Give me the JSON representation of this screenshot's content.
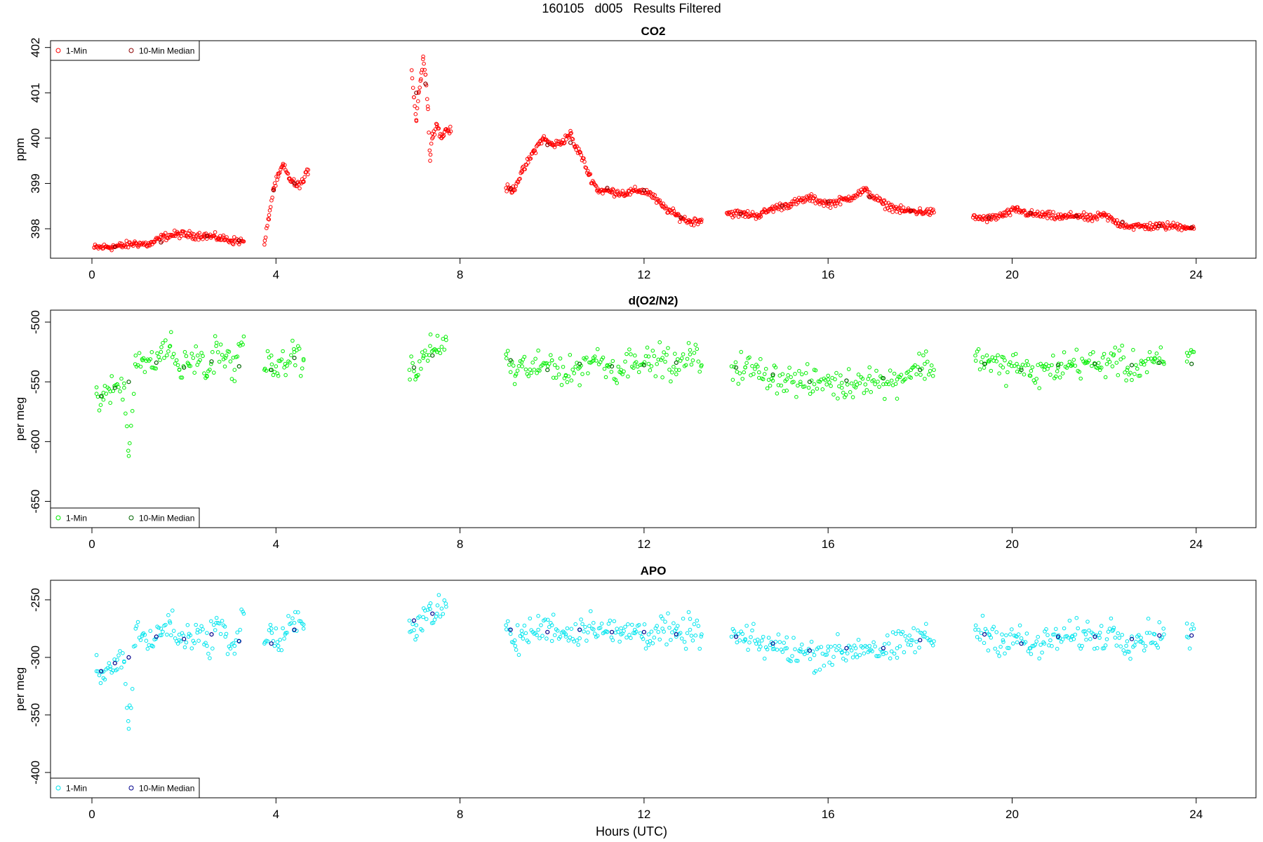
{
  "page_title": "160105   d005   Results Filtered",
  "x_axis_label": "Hours (UTC)",
  "chart_data": [
    {
      "type": "scatter",
      "title": "CO2",
      "ylabel": "ppm",
      "xlabel": "Hours (UTC)",
      "xlim": [
        -0.9,
        25.3
      ],
      "ylim": [
        397.35,
        402.15
      ],
      "xticks": [
        0,
        4,
        8,
        12,
        16,
        20,
        24
      ],
      "yticks": [
        398,
        399,
        400,
        401,
        402
      ],
      "ytick_labels": [
        "398",
        "399",
        "400",
        "401",
        "402"
      ],
      "legend": {
        "position": "top-left",
        "entries": [
          "1-Min",
          "10-Min Median"
        ]
      },
      "colors": {
        "one_min": "#ff0000",
        "median": "#8b0000"
      },
      "series": [
        {
          "name": "1-Min",
          "x": [
            0.05,
            0.35,
            0.65,
            0.95,
            1.25,
            1.55,
            1.85,
            2.15,
            2.45,
            2.75,
            3.05,
            3.3,
            3.75,
            3.85,
            3.95,
            4.05,
            4.15,
            4.3,
            4.45,
            4.6,
            4.7,
            6.95,
            7.0,
            7.05,
            7.1,
            7.15,
            7.2,
            7.25,
            7.3,
            7.35,
            7.4,
            7.5,
            7.6,
            7.7,
            7.8,
            9.0,
            9.15,
            9.35,
            9.6,
            9.8,
            10.0,
            10.2,
            10.4,
            10.5,
            10.6,
            10.8,
            11.0,
            11.3,
            11.6,
            11.9,
            12.1,
            12.4,
            12.7,
            13.0,
            13.25,
            13.8,
            14.2,
            14.5,
            14.8,
            15.2,
            15.6,
            16.0,
            16.4,
            16.8,
            17.2,
            17.6,
            18.0,
            18.3,
            19.15,
            19.5,
            19.8,
            20.1,
            20.4,
            20.7,
            21.1,
            21.4,
            21.7,
            22.0,
            22.3,
            22.6,
            22.9,
            23.3,
            23.75,
            23.95
          ],
          "y": [
            397.58,
            397.6,
            397.62,
            397.68,
            397.65,
            397.82,
            397.88,
            397.86,
            397.85,
            397.8,
            397.74,
            397.72,
            397.65,
            398.3,
            398.9,
            399.15,
            399.4,
            399.1,
            398.95,
            399.05,
            399.3,
            401.5,
            400.9,
            400.4,
            401.0,
            401.3,
            401.8,
            401.4,
            400.7,
            399.5,
            400.1,
            400.3,
            400.0,
            400.2,
            400.15,
            398.9,
            398.85,
            399.25,
            399.7,
            400.0,
            399.85,
            399.9,
            400.1,
            399.8,
            399.7,
            399.2,
            398.85,
            398.82,
            398.78,
            398.85,
            398.8,
            398.5,
            398.3,
            398.15,
            398.2,
            398.35,
            398.32,
            398.3,
            398.45,
            398.55,
            398.68,
            398.55,
            398.65,
            398.85,
            398.55,
            398.4,
            398.38,
            398.36,
            398.25,
            398.22,
            398.3,
            398.42,
            398.32,
            398.3,
            398.25,
            398.3,
            398.22,
            398.3,
            398.12,
            398.05,
            398.05,
            398.06,
            398.05,
            398.0
          ]
        },
        {
          "name": "10-Min Median",
          "x": [
            0.5,
            1.5,
            2.5,
            3.2,
            3.95,
            4.4,
            7.05,
            7.25,
            9.1,
            9.9,
            10.4,
            11.2,
            12.0,
            12.8,
            14.1,
            15.0,
            16.0,
            16.9,
            17.8,
            19.5,
            20.4,
            21.4,
            22.4,
            23.2,
            23.9
          ],
          "y": [
            397.6,
            397.7,
            397.84,
            397.74,
            398.85,
            399.0,
            401.0,
            401.2,
            398.88,
            399.85,
            399.9,
            398.9,
            398.85,
            398.25,
            398.33,
            398.5,
            398.6,
            398.7,
            398.4,
            398.25,
            398.35,
            398.28,
            398.15,
            398.06,
            398.03
          ]
        }
      ]
    },
    {
      "type": "scatter",
      "title": "d(O2/N2)",
      "ylabel": "per meg",
      "xlabel": "Hours (UTC)",
      "xlim": [
        -0.9,
        25.3
      ],
      "ylim": [
        -672,
        -490
      ],
      "xticks": [
        0,
        4,
        8,
        12,
        16,
        20,
        24
      ],
      "yticks": [
        -500,
        -550,
        -600,
        -650
      ],
      "ytick_labels": [
        "-500",
        "-550",
        "-600",
        "-650"
      ],
      "legend": {
        "position": "bottom-left",
        "entries": [
          "1-Min",
          "10-Min Median"
        ]
      },
      "colors": {
        "one_min": "#00ee00",
        "median": "#006400"
      },
      "series": [
        {
          "name": "1-Min",
          "x": [
            0.1,
            0.25,
            0.4,
            0.55,
            0.7,
            0.8,
            0.95,
            1.1,
            1.3,
            1.5,
            1.7,
            1.9,
            2.1,
            2.3,
            2.5,
            2.7,
            2.9,
            3.1,
            3.3,
            3.75,
            3.9,
            4.05,
            4.2,
            4.4,
            4.6,
            6.9,
            7.05,
            7.2,
            7.35,
            7.5,
            7.7,
            9.0,
            9.2,
            9.35,
            9.7,
            10.0,
            10.3,
            10.6,
            10.9,
            11.2,
            11.5,
            11.8,
            12.1,
            12.4,
            12.7,
            13.0,
            13.25,
            13.9,
            14.2,
            14.5,
            14.8,
            15.1,
            15.4,
            15.7,
            16.0,
            16.3,
            16.6,
            16.9,
            17.2,
            17.5,
            17.8,
            18.1,
            18.3,
            19.2,
            19.5,
            19.8,
            20.1,
            20.4,
            20.7,
            21.0,
            21.3,
            21.6,
            21.9,
            22.2,
            22.5,
            22.8,
            23.1,
            23.3,
            23.8,
            23.95
          ],
          "y": [
            -560,
            -565,
            -558,
            -552,
            -555,
            -612,
            -528,
            -532,
            -538,
            -525,
            -520,
            -540,
            -535,
            -528,
            -545,
            -520,
            -530,
            -540,
            -512,
            -540,
            -528,
            -545,
            -535,
            -525,
            -532,
            -540,
            -545,
            -530,
            -520,
            -525,
            -515,
            -527,
            -545,
            -537,
            -540,
            -532,
            -545,
            -538,
            -530,
            -536,
            -540,
            -528,
            -535,
            -530,
            -540,
            -527,
            -536,
            -537,
            -538,
            -542,
            -545,
            -548,
            -550,
            -552,
            -548,
            -555,
            -550,
            -545,
            -552,
            -548,
            -540,
            -535,
            -540,
            -528,
            -533,
            -538,
            -535,
            -545,
            -540,
            -538,
            -535,
            -533,
            -538,
            -528,
            -540,
            -535,
            -530,
            -535,
            -533,
            -525
          ],
          "_": "dense swarm generated around these anchors"
        },
        {
          "name": "10-Min Median",
          "x": [
            0.2,
            0.5,
            0.8,
            1.4,
            2.0,
            2.6,
            3.2,
            3.9,
            4.4,
            7.0,
            7.4,
            9.1,
            9.9,
            10.6,
            11.3,
            12.0,
            12.7,
            14.0,
            14.8,
            15.6,
            16.4,
            17.2,
            18.0,
            19.4,
            20.2,
            21.0,
            21.8,
            22.6,
            23.2,
            23.9
          ],
          "y": [
            -562,
            -555,
            -550,
            -534,
            -538,
            -533,
            -537,
            -540,
            -530,
            -538,
            -528,
            -532,
            -540,
            -535,
            -537,
            -536,
            -534,
            -538,
            -544,
            -550,
            -549,
            -547,
            -540,
            -535,
            -540,
            -536,
            -535,
            -536,
            -534,
            -535
          ]
        }
      ]
    },
    {
      "type": "scatter",
      "title": "APO",
      "ylabel": "per meg",
      "xlabel": "Hours (UTC)",
      "xlim": [
        -0.9,
        25.3
      ],
      "ylim": [
        -422,
        -233
      ],
      "xticks": [
        0,
        4,
        8,
        12,
        16,
        20,
        24
      ],
      "yticks": [
        -250,
        -300,
        -350,
        -400
      ],
      "ytick_labels": [
        "-250",
        "-300",
        "-350",
        "-400"
      ],
      "legend": {
        "position": "bottom-left",
        "entries": [
          "1-Min",
          "10-Min Median"
        ]
      },
      "colors": {
        "one_min": "#00e5ee",
        "median": "#00008b"
      },
      "series": [
        {
          "name": "1-Min",
          "x": [
            0.1,
            0.25,
            0.4,
            0.55,
            0.7,
            0.8,
            0.95,
            1.1,
            1.3,
            1.5,
            1.7,
            1.9,
            2.1,
            2.3,
            2.5,
            2.7,
            2.9,
            3.1,
            3.3,
            3.75,
            3.9,
            4.05,
            4.2,
            4.4,
            4.6,
            6.9,
            7.05,
            7.2,
            7.35,
            7.5,
            7.7,
            9.0,
            9.2,
            9.35,
            9.7,
            10.0,
            10.3,
            10.6,
            10.9,
            11.2,
            11.5,
            11.8,
            12.1,
            12.4,
            12.7,
            13.0,
            13.25,
            13.9,
            14.2,
            14.5,
            14.8,
            15.1,
            15.4,
            15.7,
            16.0,
            16.3,
            16.6,
            16.9,
            17.2,
            17.5,
            17.8,
            18.1,
            18.3,
            19.2,
            19.5,
            19.8,
            20.1,
            20.4,
            20.7,
            21.0,
            21.3,
            21.6,
            21.9,
            22.2,
            22.5,
            22.8,
            23.1,
            23.3,
            23.8,
            23.95
          ],
          "y": [
            -312,
            -318,
            -310,
            -302,
            -304,
            -362,
            -275,
            -280,
            -290,
            -275,
            -270,
            -285,
            -282,
            -276,
            -290,
            -270,
            -282,
            -290,
            -262,
            -288,
            -275,
            -290,
            -280,
            -270,
            -275,
            -268,
            -272,
            -265,
            -258,
            -262,
            -256,
            -272,
            -290,
            -280,
            -276,
            -272,
            -280,
            -276,
            -270,
            -278,
            -280,
            -276,
            -280,
            -275,
            -282,
            -276,
            -280,
            -282,
            -285,
            -288,
            -290,
            -292,
            -295,
            -298,
            -294,
            -296,
            -292,
            -290,
            -295,
            -292,
            -285,
            -282,
            -286,
            -276,
            -280,
            -285,
            -282,
            -292,
            -288,
            -283,
            -282,
            -280,
            -283,
            -276,
            -286,
            -283,
            -280,
            -280,
            -282,
            -275
          ],
          "_": "dense swarm generated around these anchors"
        },
        {
          "name": "10-Min Median",
          "x": [
            0.2,
            0.5,
            0.8,
            1.4,
            2.0,
            2.6,
            3.2,
            3.9,
            4.4,
            7.0,
            7.4,
            9.1,
            9.9,
            10.6,
            11.3,
            12.0,
            12.7,
            14.0,
            14.8,
            15.6,
            16.4,
            17.2,
            18.0,
            19.4,
            20.2,
            21.0,
            21.8,
            22.6,
            23.2,
            23.9
          ],
          "y": [
            -312,
            -305,
            -300,
            -282,
            -284,
            -280,
            -286,
            -288,
            -276,
            -268,
            -262,
            -276,
            -278,
            -276,
            -278,
            -278,
            -280,
            -282,
            -288,
            -294,
            -292,
            -292,
            -285,
            -280,
            -288,
            -282,
            -282,
            -284,
            -281,
            -281
          ]
        }
      ]
    }
  ]
}
